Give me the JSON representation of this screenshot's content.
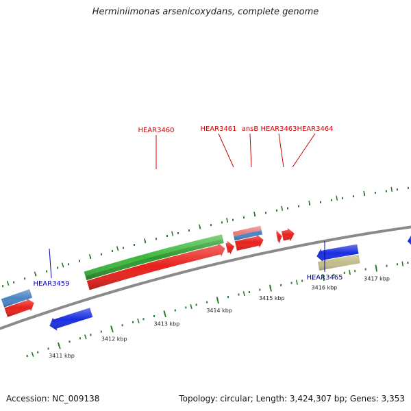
{
  "title": "Herminiimonas arsenicoxydans, complete genome",
  "footer": {
    "accession": "Accession: NC_009138",
    "summary": "Topology: circular; Length: 3,424,307 bp; Genes: 3,353"
  },
  "colors": {
    "forward_cds": "#e8211b",
    "reverse_cds": "#1a2ee0",
    "rna_green": "#3cb83c",
    "rna_pink": "#e87a7a",
    "steel_blue": "#4a84c4",
    "olive": "#c2bc8a",
    "backbone": "#8a8a8a",
    "label_forward": "#cc0000",
    "label_reverse": "#0000aa",
    "tick_green": "#2a7a2a"
  },
  "chart_data": {
    "type": "genome_map",
    "topology": "circular",
    "length_bp": 3424307,
    "view_range_kbp": [
      3410.4,
      3417.8
    ],
    "axis_ticks_kbp": [
      3411,
      3412,
      3413,
      3414,
      3415,
      3416,
      3417
    ],
    "axis_tick_labels": [
      "3411 kbp",
      "3412 kbp",
      "3413 kbp",
      "3414 kbp",
      "3415 kbp",
      "3416 kbp",
      "3417 kbp"
    ],
    "features": [
      {
        "track": "forward",
        "kind": "cds",
        "color": "#e8211b",
        "start_kbp": 3410.3,
        "end_kbp": 3410.82
      },
      {
        "track": "forward",
        "kind": "cds",
        "color": "#e8211b",
        "start_kbp": 3411.82,
        "end_kbp": 3414.35
      },
      {
        "track": "forward",
        "kind": "cds",
        "color": "#e8211b",
        "start_kbp": 3414.38,
        "end_kbp": 3414.52
      },
      {
        "track": "forward",
        "kind": "cds",
        "color": "#e8211b",
        "start_kbp": 3414.55,
        "end_kbp": 3415.06
      },
      {
        "track": "forward",
        "kind": "cds",
        "color": "#e8211b",
        "start_kbp": 3415.31,
        "end_kbp": 3415.4
      },
      {
        "track": "forward",
        "kind": "cds",
        "color": "#e8211b",
        "start_kbp": 3415.41,
        "end_kbp": 3415.63
      },
      {
        "track": "forward_upper",
        "kind": "bar",
        "color": "#4a84c4",
        "start_kbp": 3410.3,
        "end_kbp": 3410.82
      },
      {
        "track": "forward_upper",
        "kind": "bar",
        "color": "#3cb83c",
        "start_kbp": 3411.82,
        "end_kbp": 3414.35
      },
      {
        "track": "forward_upper",
        "kind": "bar",
        "color": "#e87a7a",
        "start_kbp": 3414.55,
        "end_kbp": 3415.06
      },
      {
        "track": "reverse",
        "kind": "cds",
        "color": "#1a2ee0",
        "start_kbp": 3410.95,
        "end_kbp": 3411.73
      },
      {
        "track": "reverse",
        "kind": "cds",
        "color": "#1a2ee0",
        "start_kbp": 3415.95,
        "end_kbp": 3416.72
      },
      {
        "track": "reverse",
        "kind": "cds",
        "color": "#1a2ee0",
        "start_kbp": 3417.65,
        "end_kbp": 3417.85
      },
      {
        "track": "reverse_lower",
        "kind": "bar",
        "color": "#c2bc8a",
        "start_kbp": 3415.95,
        "end_kbp": 3416.72
      }
    ],
    "labels": [
      {
        "text": "HEAR3459",
        "strand": "reverse",
        "target_kbp": 3411.05
      },
      {
        "text": "HEAR3460",
        "strand": "forward",
        "target_kbp": 3413.07
      },
      {
        "text": "HEAR3461",
        "strand": "forward",
        "target_kbp": 3414.5
      },
      {
        "text": "ansB",
        "strand": "forward",
        "target_kbp": 3414.71
      },
      {
        "text": "HEAR3463",
        "strand": "forward",
        "target_kbp": 3415.29
      },
      {
        "text": "HEAR3464",
        "strand": "forward",
        "target_kbp": 3415.47
      },
      {
        "text": "HEAR3465",
        "strand": "reverse",
        "target_kbp": 3416.35
      }
    ]
  }
}
